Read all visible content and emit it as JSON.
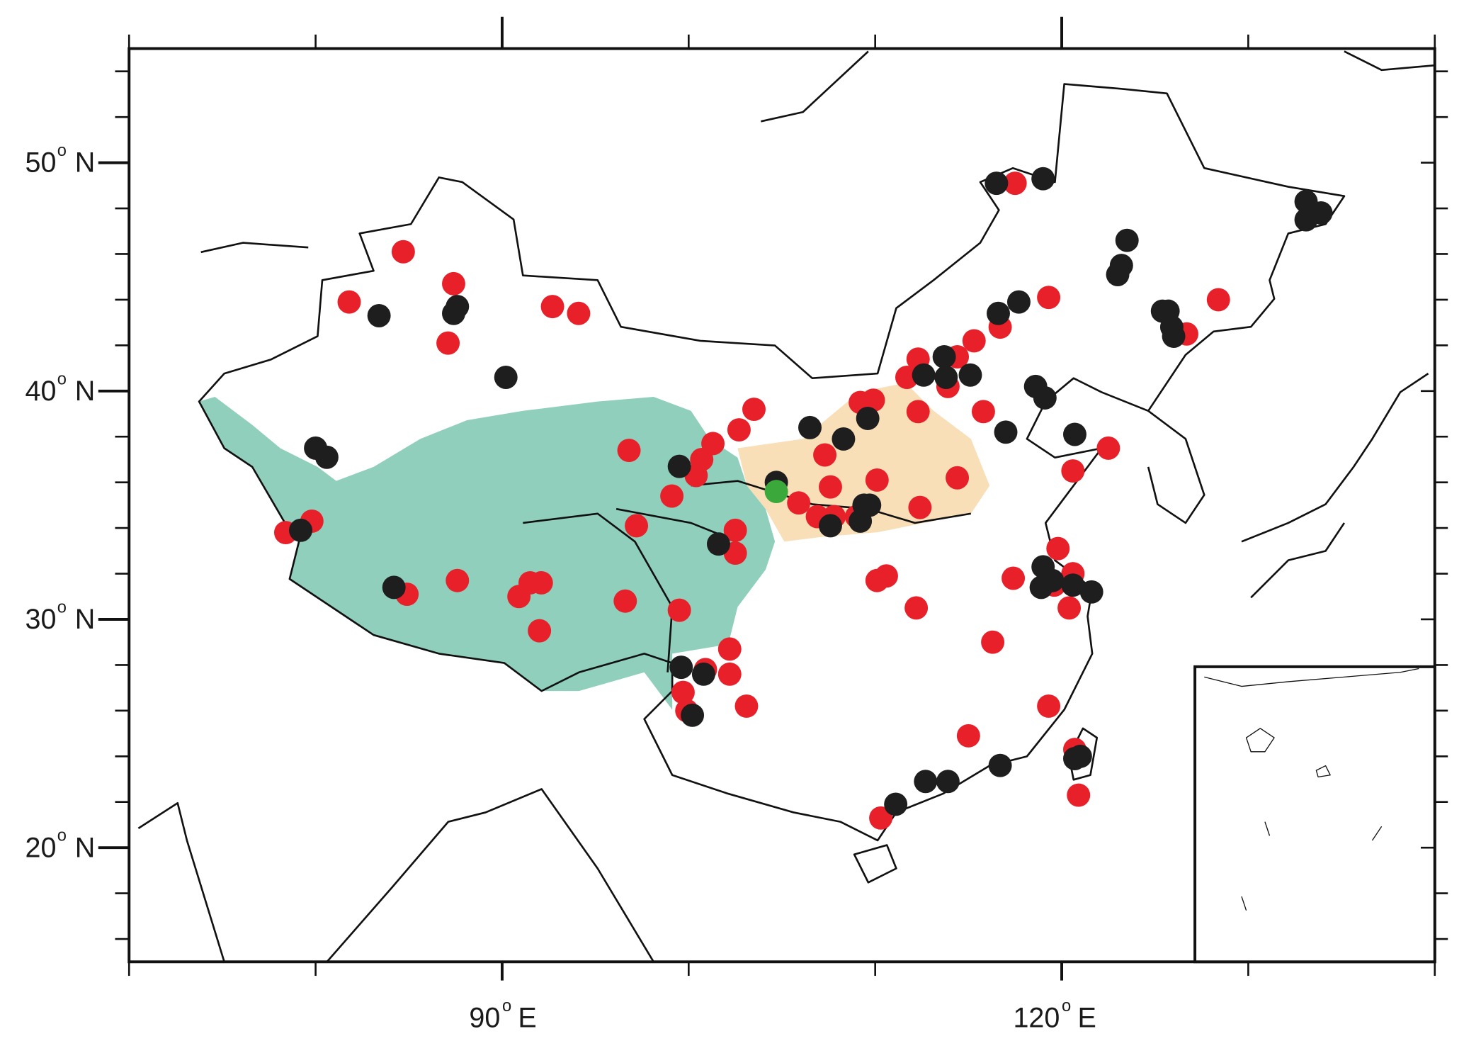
{
  "chart_data": {
    "type": "scatter",
    "xlim": [
      70,
      140
    ],
    "ylim": [
      15,
      55
    ],
    "xticks": [
      {
        "value": 90,
        "label": "90",
        "sup": "o",
        "suffix": "E"
      },
      {
        "value": 120,
        "label": "120",
        "sup": "o",
        "suffix": "E"
      }
    ],
    "xminorticks": [
      70,
      80,
      100,
      110,
      130,
      140
    ],
    "yticks": [
      {
        "value": 20,
        "label": "20",
        "sup": "o",
        "suffix": "N"
      },
      {
        "value": 30,
        "label": "30",
        "sup": "o",
        "suffix": "N"
      },
      {
        "value": 40,
        "label": "40",
        "sup": "o",
        "suffix": "N"
      },
      {
        "value": 50,
        "label": "50",
        "sup": "o",
        "suffix": "N"
      }
    ],
    "yminorticks": [
      16,
      18,
      22,
      24,
      26,
      28,
      32,
      34,
      36,
      38,
      42,
      44,
      46,
      48,
      52,
      54
    ],
    "series": [
      {
        "color": "#e8202a",
        "x": [
          84.7,
          81.8,
          87.4,
          87.1,
          92.7,
          94.1,
          96.8,
          99.1,
          100.4,
          100.7,
          101.3,
          102.7,
          103.5,
          97.2,
          102.5,
          102.5,
          99.5,
          96.6,
          92.0,
          91.5,
          92.1,
          90.9,
          87.6,
          84.9,
          79.8,
          78.4,
          102.2,
          102.2,
          100.9,
          99.7,
          99.9,
          103.1,
          105.9,
          107.3,
          107.6,
          106.9,
          107.8,
          109.0,
          109.2,
          109.9,
          110.1,
          112.4,
          114.4,
          111.7,
          112.3,
          112.3,
          113.9,
          114.4,
          115.3,
          115.8,
          116.7,
          119.3,
          120.6,
          122.5,
          128.4,
          126.7,
          117.4,
          119.8,
          119.6,
          120.4,
          120.6,
          110.1,
          110.6,
          112.2,
          116.3,
          115.0,
          119.3,
          120.7,
          120.9,
          110.3,
          117.5
        ],
        "values": [
          46.1,
          43.9,
          44.7,
          42.1,
          43.7,
          43.4,
          37.4,
          35.4,
          36.3,
          37.0,
          37.7,
          38.3,
          39.2,
          34.1,
          33.9,
          32.9,
          30.4,
          30.8,
          29.5,
          31.6,
          31.6,
          31.0,
          31.7,
          31.1,
          34.3,
          33.8,
          28.7,
          27.6,
          27.8,
          26.8,
          26.0,
          26.2,
          35.1,
          37.2,
          35.8,
          34.5,
          34.5,
          34.5,
          39.5,
          39.6,
          36.1,
          34.9,
          36.2,
          40.6,
          41.4,
          39.1,
          40.2,
          41.5,
          42.2,
          39.1,
          42.8,
          44.1,
          36.5,
          37.5,
          44.0,
          42.5,
          31.8,
          33.1,
          31.5,
          30.5,
          32.0,
          31.7,
          31.9,
          30.5,
          29.0,
          24.9,
          26.2,
          24.3,
          22.3,
          21.3,
          49.1
        ]
      },
      {
        "color": "#1e1e1e",
        "x": [
          83.4,
          87.6,
          87.4,
          90.2,
          80.0,
          80.6,
          79.2,
          84.2,
          99.5,
          101.6,
          99.6,
          100.8,
          100.2,
          104.7,
          106.5,
          108.3,
          109.6,
          109.4,
          109.7,
          109.2,
          107.6,
          112.6,
          113.7,
          113.8,
          115.1,
          116.6,
          117.7,
          117.0,
          118.6,
          119.1,
          120.7,
          116.5,
          119.0,
          123.5,
          123.2,
          123.0,
          125.4,
          125.7,
          125.9,
          126.0,
          133.1,
          133.1,
          133.9,
          119.0,
          118.9,
          119.5,
          120.6,
          121.6,
          120.7,
          121.0,
          116.7,
          112.7,
          113.9,
          111.1
        ],
        "values": [
          43.3,
          43.7,
          43.4,
          40.6,
          37.5,
          37.1,
          33.9,
          31.4,
          36.7,
          33.3,
          27.9,
          27.6,
          25.8,
          36.0,
          38.4,
          37.9,
          38.8,
          35.0,
          35.0,
          34.3,
          34.1,
          40.7,
          41.5,
          40.6,
          40.7,
          43.4,
          43.9,
          38.2,
          40.2,
          39.7,
          38.1,
          49.1,
          49.3,
          46.6,
          45.5,
          45.1,
          43.5,
          43.5,
          42.8,
          42.4,
          48.3,
          47.5,
          47.8,
          32.3,
          31.4,
          31.7,
          31.5,
          31.2,
          23.9,
          24.0,
          23.6,
          22.9,
          22.9,
          21.9
        ]
      },
      {
        "color": "#3aa83a",
        "x": [
          104.7
        ],
        "values": [
          35.6
        ]
      }
    ]
  }
}
